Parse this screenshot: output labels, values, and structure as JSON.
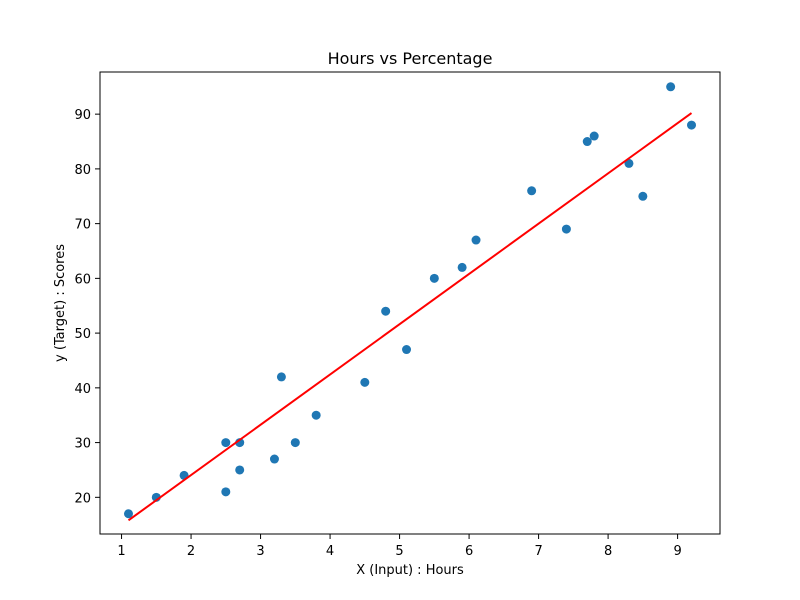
{
  "chart_data": {
    "type": "scatter",
    "title": "Hours vs Percentage",
    "xlabel": "X (Input) : Hours",
    "ylabel": "y (Target) : Scores",
    "xlim": [
      0.69,
      9.61
    ],
    "ylim": [
      13.3,
      97.7
    ],
    "xticks": [
      1,
      2,
      3,
      4,
      5,
      6,
      7,
      8,
      9
    ],
    "yticks": [
      20,
      30,
      40,
      50,
      60,
      70,
      80,
      90
    ],
    "grid": false,
    "series": [
      {
        "kind": "scatter",
        "color": "#1f77b4",
        "points": [
          [
            1.1,
            17
          ],
          [
            1.5,
            20
          ],
          [
            1.9,
            24
          ],
          [
            2.5,
            21
          ],
          [
            2.5,
            30
          ],
          [
            2.7,
            25
          ],
          [
            2.7,
            30
          ],
          [
            3.2,
            27
          ],
          [
            3.3,
            42
          ],
          [
            3.5,
            30
          ],
          [
            3.8,
            35
          ],
          [
            4.5,
            41
          ],
          [
            4.8,
            54
          ],
          [
            5.1,
            47
          ],
          [
            5.5,
            60
          ],
          [
            5.9,
            62
          ],
          [
            6.1,
            67
          ],
          [
            6.9,
            76
          ],
          [
            7.4,
            69
          ],
          [
            7.7,
            85
          ],
          [
            7.8,
            86
          ],
          [
            8.3,
            81
          ],
          [
            8.5,
            75
          ],
          [
            8.9,
            95
          ],
          [
            9.2,
            88
          ]
        ]
      },
      {
        "kind": "line",
        "color": "#ff0000",
        "points": [
          [
            1.1,
            15.8
          ],
          [
            9.2,
            90.2
          ]
        ]
      }
    ]
  }
}
